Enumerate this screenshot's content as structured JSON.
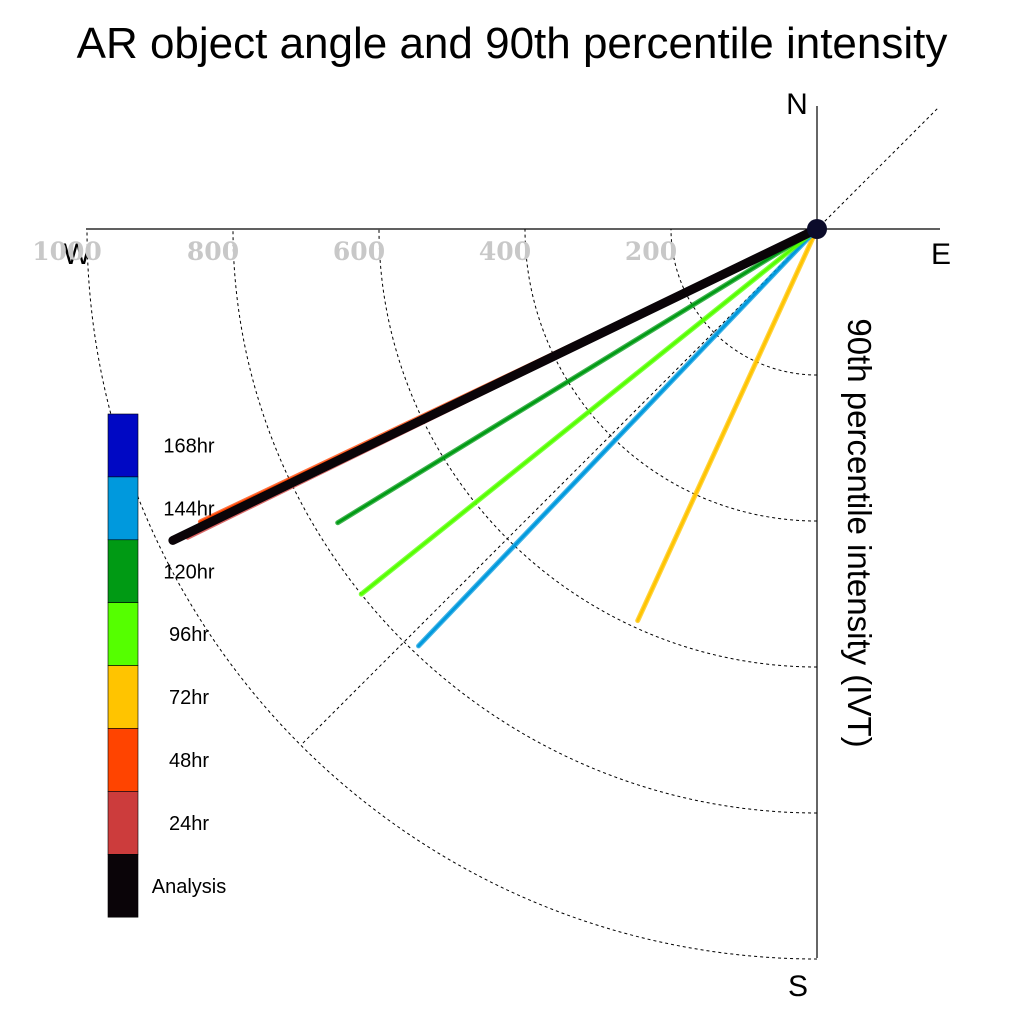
{
  "chart_data": {
    "type": "polar-vector",
    "title": "AR object angle and 90th percentile intensity",
    "ylabel": "90th percentile intensity (IVT)",
    "directions": {
      "north": "N",
      "south": "S",
      "east": "E",
      "west": "W"
    },
    "radial_ticks": [
      {
        "value": 200,
        "label": "200"
      },
      {
        "value": 400,
        "label": "400"
      },
      {
        "value": 600,
        "label": "600"
      },
      {
        "value": 800,
        "label": "800"
      },
      {
        "value": 1000,
        "label": "1000"
      }
    ],
    "rmax": 1000,
    "series": [
      {
        "name": "Analysis",
        "color": "#0a0408",
        "bearing": 244.2,
        "intensity": 980
      },
      {
        "name": "24hr",
        "color": "#cc3c3c",
        "bearing": 243.9,
        "intensity": 960
      },
      {
        "name": "48hr",
        "color": "#ff4400",
        "bearing": 244.6,
        "intensity": 935
      },
      {
        "name": "72hr",
        "color": "#ffc400",
        "bearing": 204.6,
        "intensity": 590
      },
      {
        "name": "96hr",
        "color": "#55ff00",
        "bearing": 231.3,
        "intensity": 800
      },
      {
        "name": "120hr",
        "color": "#009a14",
        "bearing": 238.5,
        "intensity": 770
      },
      {
        "name": "144hr",
        "color": "#0099dd",
        "bearing": 223.7,
        "intensity": 790
      },
      {
        "name": "168hr",
        "color": "#0008c4",
        "bearing": null,
        "intensity": null
      }
    ],
    "legend_order": [
      "168hr",
      "144hr",
      "120hr",
      "96hr",
      "72hr",
      "48hr",
      "24hr",
      "Analysis"
    ]
  }
}
